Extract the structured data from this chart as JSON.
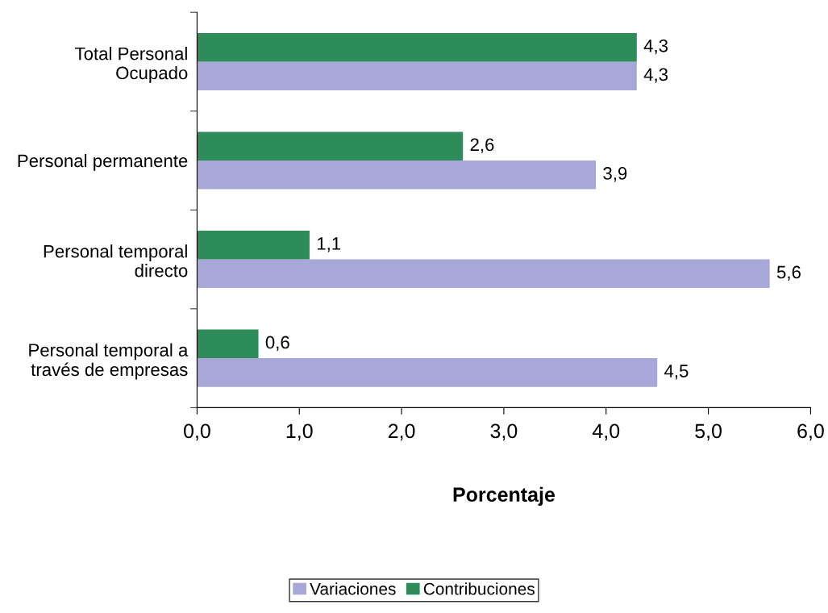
{
  "chart_data": {
    "type": "bar",
    "orientation": "horizontal",
    "xlabel": "Porcentaje",
    "categories": [
      "Total Personal\nOcupado",
      "Personal permanente",
      "Personal temporal\ndirecto",
      "Personal temporal a\ntravés de empresas"
    ],
    "series": [
      {
        "name": "Variaciones",
        "color": "#a8a8d8",
        "values": [
          4.3,
          3.9,
          5.6,
          4.5
        ],
        "value_labels": [
          "4,3",
          "3,9",
          "5,6",
          "4,5"
        ]
      },
      {
        "name": "Contribuciones",
        "color": "#2e8b5a",
        "values": [
          4.3,
          2.6,
          1.1,
          0.6
        ],
        "value_labels": [
          "4,3",
          "2,6",
          "1,1",
          "0,6"
        ]
      }
    ],
    "xlim": [
      0,
      6
    ],
    "xticks": [
      {
        "value": 0,
        "label": "0,0"
      },
      {
        "value": 1,
        "label": "1,0"
      },
      {
        "value": 2,
        "label": "2,0"
      },
      {
        "value": 3,
        "label": "3,0"
      },
      {
        "value": 4,
        "label": "4,0"
      },
      {
        "value": 5,
        "label": "5,0"
      },
      {
        "value": 6,
        "label": "6,0"
      }
    ],
    "grid": false,
    "legend": "bottom"
  }
}
